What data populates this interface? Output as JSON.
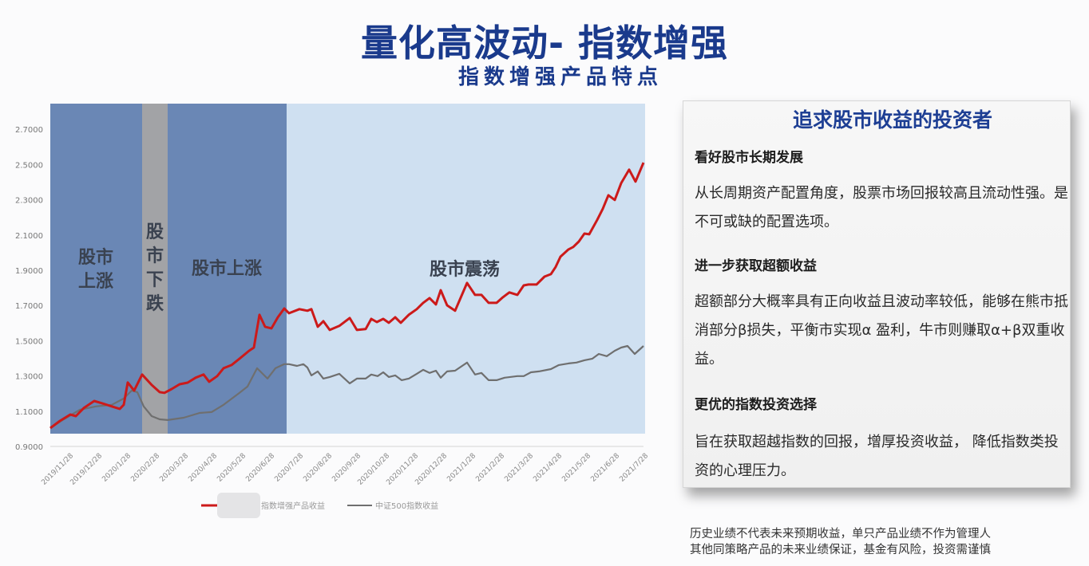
{
  "header": {
    "title": "量化高波动- 指数增强",
    "subtitle": "指数增强产品特点"
  },
  "chart_data": {
    "type": "line",
    "title": "",
    "xlabel": "",
    "ylabel": "",
    "ylim": [
      0.9,
      2.7
    ],
    "yticks": [
      "0.9000",
      "1.1000",
      "1.3000",
      "1.5000",
      "1.7000",
      "1.9000",
      "2.1000",
      "2.3000",
      "2.5000",
      "2.7000"
    ],
    "x_tick_labels": [
      "2019/11/28",
      "2019/12/28",
      "2020/1/28",
      "2020/2/28",
      "2020/3/28",
      "2020/4/28",
      "2020/5/28",
      "2020/6/28",
      "2020/7/28",
      "2020/8/28",
      "2020/9/28",
      "2020/10/28",
      "2020/11/28",
      "2020/12/28",
      "2021/1/28",
      "2021/2/28",
      "2021/3/28",
      "2021/4/28",
      "2021/5/28",
      "2021/6/28",
      "2021/7/28"
    ],
    "grid": false,
    "legend_position": "bottom",
    "regions": [
      {
        "label": "股市上涨",
        "label_lines": [
          "股市",
          "上涨"
        ],
        "x_start": 63,
        "x_end": 178,
        "color": "#6a87b5"
      },
      {
        "label": "股市下跌",
        "label_lines": [
          "股",
          "市",
          "下",
          "跌"
        ],
        "x_start": 178,
        "x_end": 210,
        "color": "#a2a3a6"
      },
      {
        "label": "股市上涨",
        "label_lines": [
          "股市上涨"
        ],
        "x_start": 210,
        "x_end": 359,
        "color": "#6a87b5"
      },
      {
        "label": "股市震荡",
        "label_lines": [
          "股市震荡"
        ],
        "x_start": 359,
        "x_end": 808,
        "color": "#cfe0f1"
      }
    ],
    "series": [
      {
        "name": "指数增强产品收益",
        "color": "#cc1a1a",
        "points": [
          [
            63,
            1.004
          ],
          [
            75,
            1.045
          ],
          [
            88,
            1.081
          ],
          [
            95,
            1.072
          ],
          [
            105,
            1.118
          ],
          [
            118,
            1.158
          ],
          [
            128,
            1.145
          ],
          [
            140,
            1.127
          ],
          [
            150,
            1.113
          ],
          [
            155,
            1.136
          ],
          [
            160,
            1.263
          ],
          [
            168,
            1.217
          ],
          [
            178,
            1.308
          ],
          [
            190,
            1.249
          ],
          [
            200,
            1.208
          ],
          [
            206,
            1.204
          ],
          [
            215,
            1.226
          ],
          [
            225,
            1.253
          ],
          [
            235,
            1.262
          ],
          [
            245,
            1.29
          ],
          [
            255,
            1.308
          ],
          [
            262,
            1.267
          ],
          [
            272,
            1.299
          ],
          [
            280,
            1.344
          ],
          [
            290,
            1.362
          ],
          [
            300,
            1.398
          ],
          [
            312,
            1.443
          ],
          [
            318,
            1.461
          ],
          [
            325,
            1.647
          ],
          [
            332,
            1.579
          ],
          [
            340,
            1.57
          ],
          [
            348,
            1.633
          ],
          [
            356,
            1.683
          ],
          [
            362,
            1.656
          ],
          [
            375,
            1.679
          ],
          [
            385,
            1.67
          ],
          [
            390,
            1.679
          ],
          [
            398,
            1.579
          ],
          [
            405,
            1.611
          ],
          [
            413,
            1.561
          ],
          [
            425,
            1.584
          ],
          [
            438,
            1.629
          ],
          [
            447,
            1.561
          ],
          [
            458,
            1.566
          ],
          [
            465,
            1.624
          ],
          [
            472,
            1.606
          ],
          [
            480,
            1.624
          ],
          [
            487,
            1.602
          ],
          [
            495,
            1.633
          ],
          [
            502,
            1.602
          ],
          [
            512,
            1.647
          ],
          [
            522,
            1.679
          ],
          [
            530,
            1.715
          ],
          [
            538,
            1.742
          ],
          [
            546,
            1.706
          ],
          [
            552,
            1.787
          ],
          [
            560,
            1.701
          ],
          [
            570,
            1.67
          ],
          [
            585,
            1.828
          ],
          [
            595,
            1.76
          ],
          [
            603,
            1.76
          ],
          [
            612,
            1.715
          ],
          [
            622,
            1.715
          ],
          [
            630,
            1.747
          ],
          [
            638,
            1.774
          ],
          [
            648,
            1.76
          ],
          [
            656,
            1.814
          ],
          [
            662,
            1.819
          ],
          [
            672,
            1.819
          ],
          [
            682,
            1.864
          ],
          [
            690,
            1.878
          ],
          [
            696,
            1.919
          ],
          [
            702,
            1.977
          ],
          [
            712,
            2.018
          ],
          [
            718,
            2.032
          ],
          [
            725,
            2.063
          ],
          [
            732,
            2.108
          ],
          [
            738,
            2.104
          ],
          [
            748,
            2.186
          ],
          [
            755,
            2.249
          ],
          [
            762,
            2.326
          ],
          [
            770,
            2.299
          ],
          [
            778,
            2.394
          ],
          [
            788,
            2.471
          ],
          [
            796,
            2.403
          ],
          [
            806,
            2.511
          ]
        ]
      },
      {
        "name": "中证500指数收益",
        "color": "#6f6f6f",
        "points": [
          [
            63,
            1.004
          ],
          [
            80,
            1.054
          ],
          [
            100,
            1.108
          ],
          [
            120,
            1.127
          ],
          [
            140,
            1.136
          ],
          [
            155,
            1.172
          ],
          [
            165,
            1.217
          ],
          [
            172,
            1.208
          ],
          [
            180,
            1.127
          ],
          [
            190,
            1.072
          ],
          [
            200,
            1.054
          ],
          [
            210,
            1.05
          ],
          [
            230,
            1.063
          ],
          [
            250,
            1.09
          ],
          [
            265,
            1.095
          ],
          [
            280,
            1.136
          ],
          [
            300,
            1.204
          ],
          [
            310,
            1.24
          ],
          [
            322,
            1.344
          ],
          [
            335,
            1.285
          ],
          [
            345,
            1.344
          ],
          [
            356,
            1.367
          ],
          [
            362,
            1.367
          ],
          [
            372,
            1.357
          ],
          [
            380,
            1.367
          ],
          [
            385,
            1.348
          ],
          [
            390,
            1.303
          ],
          [
            398,
            1.326
          ],
          [
            405,
            1.285
          ],
          [
            413,
            1.294
          ],
          [
            425,
            1.312
          ],
          [
            438,
            1.258
          ],
          [
            447,
            1.285
          ],
          [
            458,
            1.285
          ],
          [
            465,
            1.308
          ],
          [
            473,
            1.299
          ],
          [
            480,
            1.321
          ],
          [
            487,
            1.294
          ],
          [
            495,
            1.303
          ],
          [
            503,
            1.276
          ],
          [
            512,
            1.285
          ],
          [
            522,
            1.312
          ],
          [
            530,
            1.335
          ],
          [
            538,
            1.317
          ],
          [
            546,
            1.33
          ],
          [
            552,
            1.29
          ],
          [
            560,
            1.326
          ],
          [
            570,
            1.33
          ],
          [
            585,
            1.376
          ],
          [
            595,
            1.308
          ],
          [
            603,
            1.317
          ],
          [
            612,
            1.276
          ],
          [
            622,
            1.276
          ],
          [
            632,
            1.29
          ],
          [
            648,
            1.299
          ],
          [
            656,
            1.299
          ],
          [
            665,
            1.321
          ],
          [
            675,
            1.326
          ],
          [
            690,
            1.339
          ],
          [
            700,
            1.362
          ],
          [
            712,
            1.371
          ],
          [
            722,
            1.376
          ],
          [
            732,
            1.389
          ],
          [
            742,
            1.398
          ],
          [
            750,
            1.425
          ],
          [
            760,
            1.412
          ],
          [
            770,
            1.443
          ],
          [
            778,
            1.461
          ],
          [
            786,
            1.47
          ],
          [
            795,
            1.425
          ],
          [
            806,
            1.47
          ]
        ]
      }
    ]
  },
  "legend": {
    "items": [
      {
        "label": "指数增强产品收益",
        "color": "#cc1a1a"
      },
      {
        "label": "中证500指数收益",
        "color": "#6f6f6f"
      }
    ]
  },
  "panel": {
    "title": "追求股市收益的投资者",
    "sections": [
      {
        "heading": "看好股市长期发展",
        "body": "从长周期资产配置角度，股票市场回报较高且流动性强。是不可或缺的配置选项。"
      },
      {
        "heading": "进一步获取超额收益",
        "body": "超额部分大概率具有正向收益且波动率较低，能够在熊市抵消部分β损失，平衡市实现α 盈利，牛市则赚取α+β双重收益。"
      },
      {
        "heading": "更优的指数投资选择",
        "body": "旨在获取超越指数的回报，增厚投资收益， 降低指数类投资的心理压力。"
      }
    ]
  },
  "disclaimer": {
    "line1": "历史业绩不代表未来预期收益，单只产品业绩不作为管理人",
    "line2": "其他同策略产品的未来业绩保证，基金有风险，投资需谨慎"
  }
}
